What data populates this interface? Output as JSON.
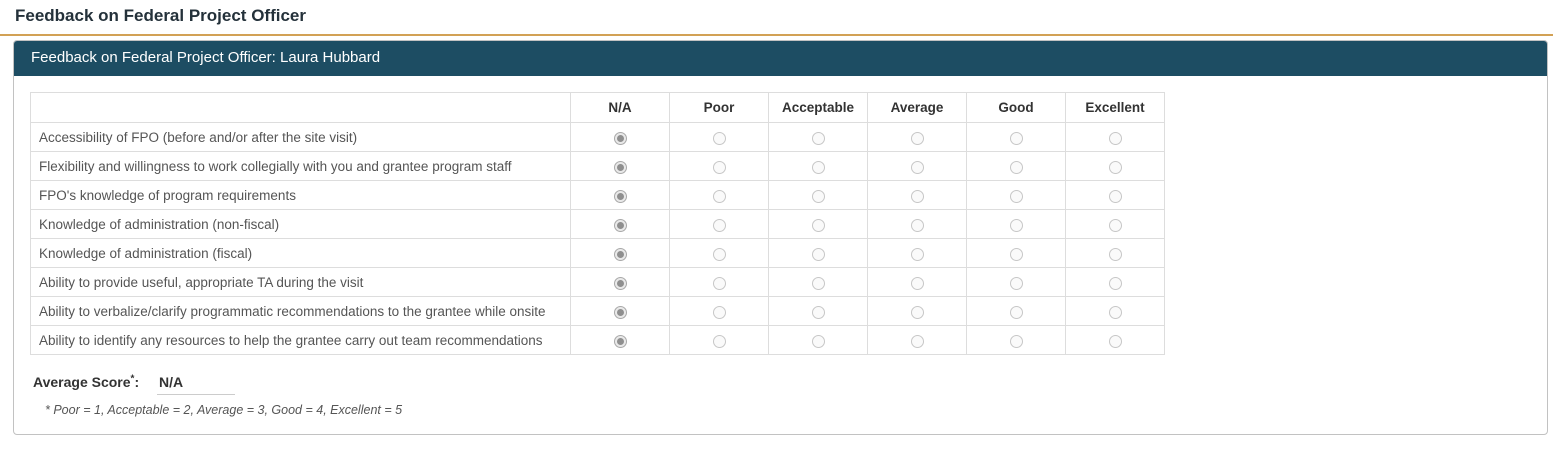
{
  "page": {
    "title": "Feedback on Federal Project Officer"
  },
  "panel": {
    "header": "Feedback on Federal Project Officer: Laura Hubbard"
  },
  "table": {
    "columns": [
      "N/A",
      "Poor",
      "Acceptable",
      "Average",
      "Good",
      "Excellent"
    ],
    "rows": [
      {
        "label": "Accessibility of FPO (before and/or after the site visit)",
        "selected": "N/A"
      },
      {
        "label": "Flexibility and willingness to work collegially with you and grantee program staff",
        "selected": "N/A"
      },
      {
        "label": "FPO's knowledge of program requirements",
        "selected": "N/A"
      },
      {
        "label": "Knowledge of administration (non-fiscal)",
        "selected": "N/A"
      },
      {
        "label": "Knowledge of administration (fiscal)",
        "selected": "N/A"
      },
      {
        "label": "Ability to provide useful, appropriate TA during the visit",
        "selected": "N/A"
      },
      {
        "label": "Ability to verbalize/clarify programmatic recommendations to the grantee while onsite",
        "selected": "N/A"
      },
      {
        "label": "Ability to identify any resources to help the grantee carry out team recommendations",
        "selected": "N/A"
      }
    ]
  },
  "summary": {
    "average_score_label": "Average Score",
    "asterisk": "*",
    "colon": ":",
    "average_score_value": "N/A",
    "footnote": "* Poor = 1, Acceptable = 2, Average = 3, Good = 4, Excellent = 5"
  },
  "colors": {
    "panel_header_background": "#1d4d63",
    "title_accent_line": "#d2a155"
  }
}
